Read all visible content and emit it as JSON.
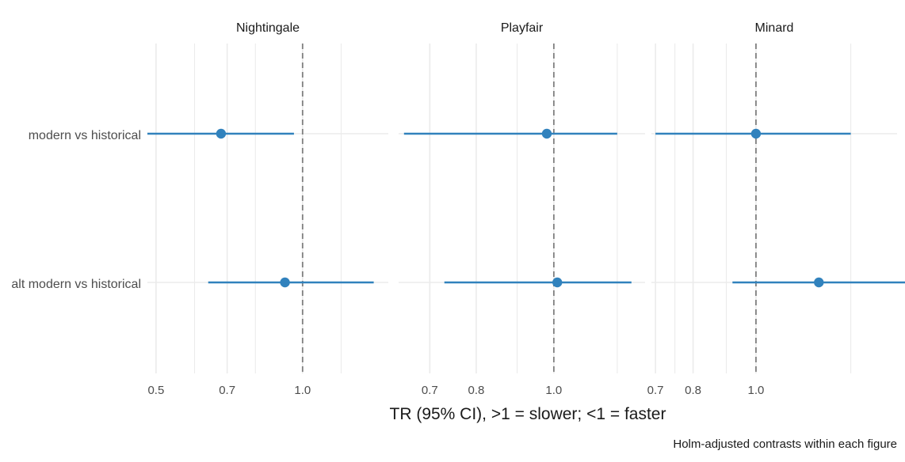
{
  "chart_data": {
    "type": "forest",
    "scale": "log",
    "xlabel": "TR (95% CI), >1 = slower; <1 = faster",
    "caption": "Holm-adjusted contrasts within each figure",
    "categories": [
      "modern vs historical",
      "alt modern vs historical"
    ],
    "reference_line": 1.0,
    "colors": {
      "point": "#3182bd",
      "reference": "#808080",
      "grid": "#ebebeb"
    },
    "grid": true,
    "panels": [
      {
        "title": "Nightingale",
        "xlim": [
          0.48,
          1.5
        ],
        "tick_labels": [
          "0.5",
          "0.7",
          "1.0"
        ],
        "tick_values": [
          0.5,
          0.7,
          1.0
        ],
        "minor_gridlines": [
          0.6,
          0.8,
          1.2
        ],
        "estimates": [
          {
            "label": "modern vs historical",
            "tr": 0.68,
            "lower": 0.48,
            "upper": 0.96
          },
          {
            "label": "alt modern vs historical",
            "tr": 0.92,
            "lower": 0.64,
            "upper": 1.4
          }
        ]
      },
      {
        "title": "Playfair",
        "xlim": [
          0.64,
          1.3
        ],
        "tick_labels": [
          "0.7",
          "0.8",
          "1.0"
        ],
        "tick_values": [
          0.7,
          0.8,
          1.0
        ],
        "minor_gridlines": [
          0.9,
          1.2
        ],
        "estimates": [
          {
            "label": "modern vs historical",
            "tr": 0.98,
            "lower": 0.65,
            "upper": 1.2
          },
          {
            "label": "alt modern vs historical",
            "tr": 1.01,
            "lower": 0.73,
            "upper": 1.25
          }
        ]
      },
      {
        "title": "Minard",
        "xlim": [
          0.69,
          1.65
        ],
        "tick_labels": [
          "0.7",
          "0.8",
          "1.0"
        ],
        "tick_values": [
          0.7,
          0.8,
          1.0
        ],
        "minor_gridlines": [
          0.75,
          0.9,
          1.4
        ],
        "estimates": [
          {
            "label": "modern vs historical",
            "tr": 1.0,
            "lower": 0.7,
            "upper": 1.4
          },
          {
            "label": "alt modern vs historical",
            "tr": 1.25,
            "lower": 0.92,
            "upper": 1.8
          }
        ]
      }
    ]
  }
}
